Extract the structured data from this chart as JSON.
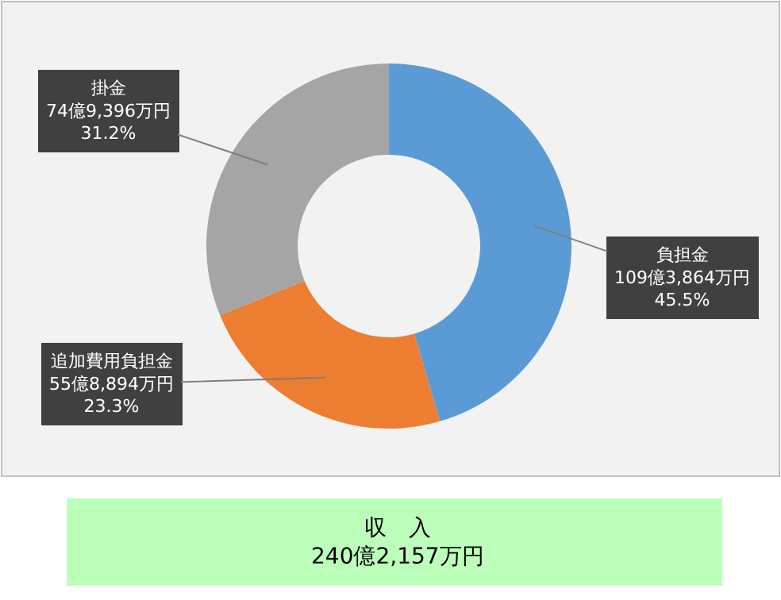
{
  "chart_data": {
    "type": "donut",
    "categories": [
      "負担金",
      "追加費用負担金",
      "掛金"
    ],
    "values": [
      45.5,
      23.3,
      31.2
    ],
    "colors": [
      "#5b9bd5",
      "#ed7d31",
      "#a5a5a5"
    ],
    "value_labels": [
      "109億3,864万円\n45.5%",
      "55億8,894万円\n23.3%",
      "74億9,396万円\n31.2%"
    ],
    "annotations": [
      "収　入\n240億2,157万円"
    ]
  }
}
